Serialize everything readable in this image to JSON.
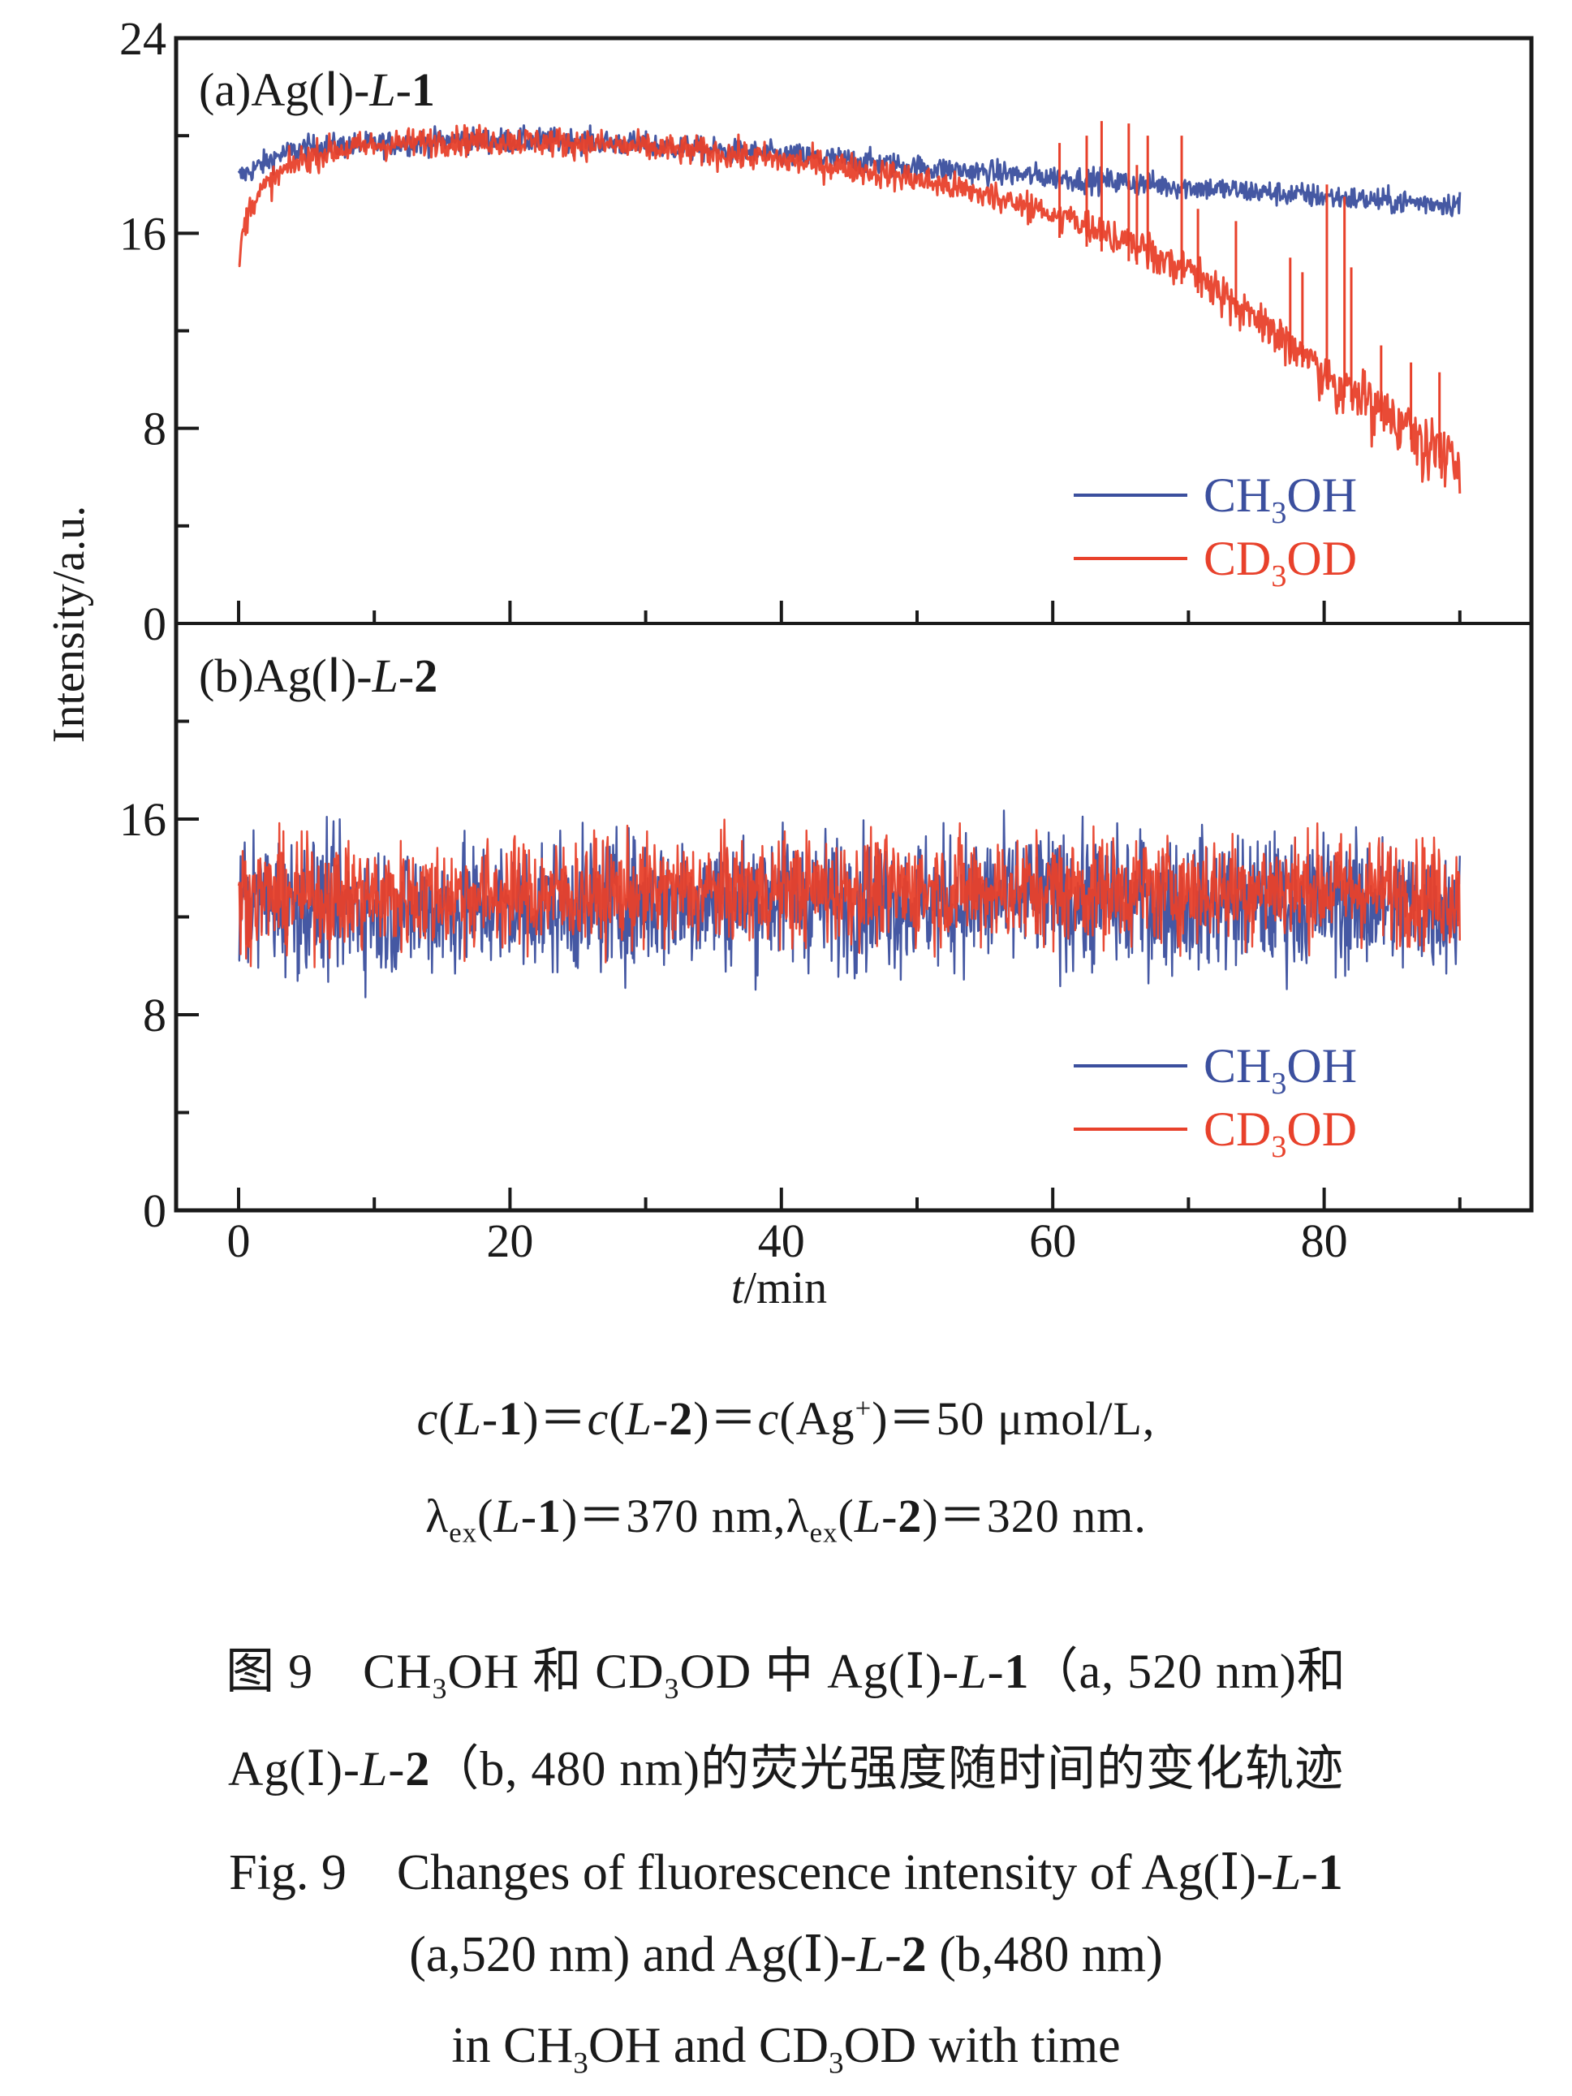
{
  "chart_data": {
    "type": "line",
    "x_label_italic": "t",
    "x_label_rest": "/min",
    "ylabel": "Intensity/a.u.",
    "xlim": [
      -4,
      95
    ],
    "x_ticks": [
      0,
      20,
      40,
      60,
      80
    ],
    "x_minor_ticks": [
      10,
      30,
      50,
      70,
      90
    ],
    "legend_position": "lower-right",
    "grid": false,
    "colors": {
      "CH3OH": "#3b4f9e",
      "CD3OD": "#e8412b"
    },
    "legend": [
      {
        "key": "CH3OH",
        "base": "CH",
        "sub": "3",
        "tail": "OH"
      },
      {
        "key": "CD3OD",
        "base": "CD",
        "sub": "3",
        "tail": "OD"
      }
    ],
    "panels": [
      {
        "id": "a",
        "label_prefix": "(a)Ag(",
        "label_roman": "Ⅰ",
        "label_mid": ")-",
        "label_italic": "L",
        "label_dash": "-",
        "label_bold": "1",
        "ylim": [
          0,
          24
        ],
        "y_ticks": [
          0,
          8,
          16,
          24
        ],
        "y_tick_labels": [
          "0",
          "8",
          "16",
          "24"
        ],
        "y_minor_ticks": [
          4,
          12,
          20
        ],
        "series": [
          {
            "name": "CH3OH",
            "noise": 0.25,
            "points": [
              [
                0,
                18.3
              ],
              [
                1,
                18.6
              ],
              [
                2,
                18.9
              ],
              [
                3,
                19.2
              ],
              [
                5,
                19.5
              ],
              [
                8,
                19.6
              ],
              [
                12,
                19.7
              ],
              [
                16,
                19.8
              ],
              [
                20,
                19.8
              ],
              [
                25,
                19.8
              ],
              [
                30,
                19.6
              ],
              [
                35,
                19.4
              ],
              [
                40,
                19.2
              ],
              [
                45,
                19.0
              ],
              [
                50,
                18.7
              ],
              [
                55,
                18.5
              ],
              [
                60,
                18.3
              ],
              [
                65,
                18.1
              ],
              [
                70,
                17.9
              ],
              [
                75,
                17.7
              ],
              [
                80,
                17.5
              ],
              [
                85,
                17.3
              ],
              [
                90,
                17.2
              ]
            ]
          },
          {
            "name": "CD3OD",
            "noise": 0.3,
            "points": [
              [
                0,
                14.5
              ],
              [
                0.3,
                16.0
              ],
              [
                0.7,
                16.8
              ],
              [
                1,
                17.3
              ],
              [
                2,
                17.9
              ],
              [
                3,
                18.4
              ],
              [
                4,
                18.8
              ],
              [
                5,
                19.1
              ],
              [
                7,
                19.4
              ],
              [
                10,
                19.6
              ],
              [
                15,
                19.8
              ],
              [
                20,
                19.8
              ],
              [
                25,
                19.7
              ],
              [
                30,
                19.5
              ],
              [
                35,
                19.3
              ],
              [
                40,
                19.0
              ],
              [
                45,
                18.7
              ],
              [
                50,
                18.2
              ],
              [
                55,
                17.6
              ],
              [
                60,
                16.9
              ],
              [
                65,
                16.0
              ],
              [
                70,
                14.8
              ],
              [
                75,
                13.0
              ],
              [
                80,
                10.8
              ],
              [
                85,
                9.0
              ],
              [
                88,
                8.0
              ],
              [
                90,
                7.2
              ]
            ],
            "spikes": [
              [
                60.5,
                19.7
              ],
              [
                62.5,
                20.0
              ],
              [
                63.6,
                20.6
              ],
              [
                65.6,
                20.5
              ],
              [
                66.2,
                18.8
              ],
              [
                67,
                20.0
              ],
              [
                69.5,
                20.0
              ],
              [
                70.7,
                17.0
              ],
              [
                73.5,
                16.5
              ],
              [
                77.5,
                15.0
              ],
              [
                78.4,
                14.4
              ],
              [
                80.2,
                18.0
              ],
              [
                81.5,
                17.5
              ],
              [
                82.0,
                14.6
              ],
              [
                84.2,
                11.4
              ],
              [
                86.4,
                10.7
              ],
              [
                88.5,
                10.3
              ]
            ]
          }
        ]
      },
      {
        "id": "b",
        "label_prefix": "(b)Ag(",
        "label_roman": "Ⅰ",
        "label_mid": ")-",
        "label_italic": "L",
        "label_dash": "-",
        "label_bold": "2",
        "ylim": [
          0,
          24
        ],
        "y_ticks": [
          0,
          8,
          16
        ],
        "y_tick_labels": [
          "0",
          "8",
          "16"
        ],
        "y_minor_ticks": [
          4,
          12,
          20
        ],
        "series": [
          {
            "name": "CH3OH",
            "noise": 1.5,
            "points": [
              [
                0,
                12.7
              ],
              [
                10,
                12.3
              ],
              [
                20,
                12.4
              ],
              [
                30,
                12.6
              ],
              [
                40,
                12.8
              ],
              [
                50,
                12.6
              ],
              [
                60,
                12.7
              ],
              [
                70,
                12.6
              ],
              [
                80,
                12.6
              ],
              [
                90,
                12.4
              ]
            ]
          },
          {
            "name": "CD3OD",
            "noise": 1.2,
            "points": [
              [
                0,
                12.9
              ],
              [
                10,
                12.8
              ],
              [
                20,
                12.9
              ],
              [
                30,
                13.0
              ],
              [
                40,
                13.1
              ],
              [
                50,
                13.1
              ],
              [
                60,
                13.1
              ],
              [
                70,
                13.1
              ],
              [
                80,
                13.2
              ],
              [
                90,
                12.9
              ]
            ]
          }
        ]
      }
    ]
  },
  "conditions": {
    "line1": {
      "c1": "c",
      "open1": "(",
      "L1": "L",
      "dash1": "-",
      "n1": "1",
      "close1": ")",
      "eq1": "＝",
      "c2": "c",
      "open2": "(",
      "L2": "L",
      "dash2": "-",
      "n2": "2",
      "close2": ")",
      "eq2": "＝",
      "c3": "c",
      "ag": "(Ag",
      "plus": "+",
      "close3": ")",
      "eq3": "＝",
      "value": "50 μmol/L,"
    },
    "line2": {
      "lambda1": "λ",
      "ex1": "ex",
      "open1": "(",
      "L1": "L",
      "dash1": "-",
      "n1": "1",
      "close1": ")",
      "val1": "＝370 nm,",
      "lambda2": "λ",
      "ex2": "ex",
      "open2": "(",
      "L2": "L",
      "dash2": "-",
      "n2": "2",
      "close2": ")",
      "val2": "＝320 nm."
    }
  },
  "caption_cn": {
    "line1": {
      "fig": "图 9　CH",
      "sub1": "3",
      "a": "OH 和 CD",
      "sub2": "3",
      "b": "OD 中 Ag(Ⅰ)-",
      "L": "L",
      "dash": "-",
      "n": "1",
      "c": "（a, 520 nm)和"
    },
    "line2": {
      "a": "Ag(Ⅰ)-",
      "L": "L",
      "dash": "-",
      "n": "2",
      "b": "（b, 480 nm)的荧光强度随时间的变化轨迹"
    }
  },
  "caption_en": {
    "line1": {
      "a": "Fig. 9　Changes of fluorescence intensity of Ag(Ⅰ)-",
      "L": "L",
      "dash": "-",
      "n": "1"
    },
    "line2": {
      "a": "(a,520 nm) and Ag(Ⅰ)-",
      "L": "L",
      "dash": "-",
      "n": "2",
      "b": " (b,480 nm)"
    },
    "line3": {
      "a": "in CH",
      "sub1": "3",
      "b": "OH and CD",
      "sub2": "3",
      "c": "OD with time"
    }
  }
}
